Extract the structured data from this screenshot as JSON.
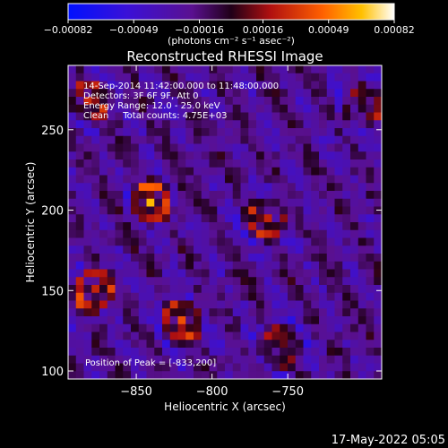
{
  "chart_data": {
    "type": "heatmap",
    "title": "Reconstructed RHESSI Image",
    "xlabel": "Heliocentric X (arcsec)",
    "ylabel": "Heliocentric Y (arcsec)",
    "xlim": [
      -895,
      -688
    ],
    "ylim": [
      95,
      290
    ],
    "xticks": [
      -850,
      -800,
      -750
    ],
    "yticks": [
      100,
      150,
      200,
      250
    ],
    "x_tick_labels": [
      "−850",
      "−800",
      "−750"
    ],
    "y_tick_labels": [
      "100",
      "150",
      "200",
      "250"
    ],
    "colorbar": {
      "tick_labels": [
        "−0.00082",
        "−0.00049",
        "−0.00016",
        "0.00016",
        "0.00049",
        "0.00082"
      ],
      "ticks": [
        -0.00082,
        -0.00049,
        -0.00016,
        0.00016,
        0.00049,
        0.00082
      ],
      "range": [
        -0.00082,
        0.00082
      ],
      "unit_label": "(photons cm⁻² s⁻¹ asec⁻²)",
      "colormap": "blue-purple-red-yellow-white"
    },
    "annotations": [
      "14-Sep-2014 11:42:00.000 to 11:48:00.000",
      "Detectors: 3F 6F 9F, Att 0",
      "Energy Range: 12.0 - 25.0 keV",
      "Clean     Total counts: 4.75E+03"
    ],
    "peak_text": "Position of Peak = [-833,200]",
    "peak_position": [
      -833,
      200
    ],
    "bright_regions": [
      {
        "x": -840,
        "y": 205,
        "intensity": 0.00082
      },
      {
        "x": -878,
        "y": 150,
        "intensity": 0.0007
      },
      {
        "x": -820,
        "y": 130,
        "intensity": 0.00065
      },
      {
        "x": -765,
        "y": 195,
        "intensity": 0.0006
      },
      {
        "x": -880,
        "y": 268,
        "intensity": 0.00055
      },
      {
        "x": -755,
        "y": 115,
        "intensity": 0.0005
      },
      {
        "x": -700,
        "y": 265,
        "intensity": 0.0004
      }
    ]
  },
  "footer": {
    "timestamp": "17-May-2022 05:05"
  }
}
